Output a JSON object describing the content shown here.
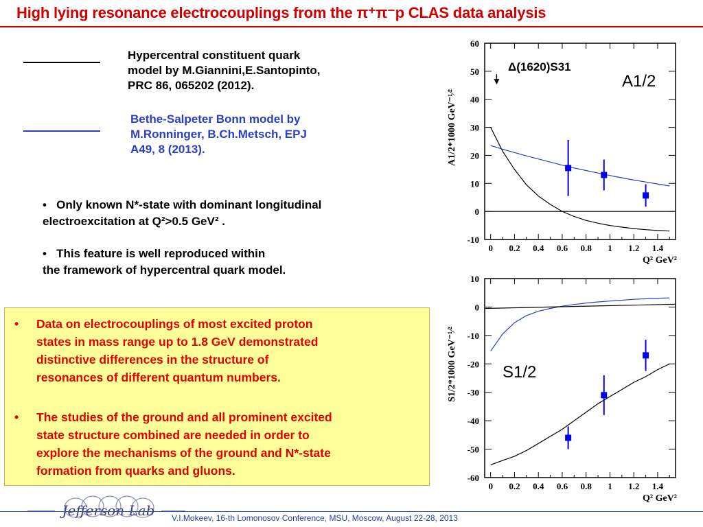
{
  "slide": {
    "title": "High lying resonance electrocouplings from the  π⁺π⁻p CLAS data analysis",
    "legend": [
      {
        "lines": [
          "Hypercentral constituent quark",
          "model by M.Giannini,E.Santopinto,",
          "PRC 86, 065202 (2012)."
        ],
        "color": "#000000"
      },
      {
        "lines": [
          "Bethe-Salpeter Bonn model by",
          "M.Ronninger, B.Ch.Metsch, EPJ",
          "A49, 8 (2013)."
        ],
        "color": "#2a3fc6"
      }
    ],
    "bullets": [
      {
        "bullet": "•",
        "line1": "Only known  N*-state with dominant longitudinal",
        "line2": "electroexcitation at Q²>0.5 GeV² ."
      },
      {
        "bullet": "•",
        "line1": "This feature is well reproduced within",
        "line2": "the framework  of hypercentral quark model."
      }
    ],
    "box": [
      {
        "bullet": "•",
        "lines": [
          "Data on electrocouplings of most excited proton",
          "states in mass range up to 1.8 GeV  demonstrated",
          "distinctive  differences in the structure of",
          "resonances of different  quantum numbers."
        ]
      },
      {
        "bullet": "•",
        "lines": [
          "The studies of the ground and all prominent excited",
          "state structure combined are needed in order to",
          "explore the mechanisms of the ground and N*-state",
          "formation from quarks and gluons."
        ]
      }
    ],
    "footer": "V.I.Mokeev, 16-th Lomonosov Conference, MSU, Moscow, August 22-28, 2013",
    "logo_text": "Jefferson Lab",
    "colors": {
      "title": "#d00000",
      "box_text": "#e00000",
      "box_bg": "#ffff99",
      "data": "#0000ee",
      "bonn": "#2a3fc6",
      "hcqm": "#000000"
    }
  },
  "chart_data": [
    {
      "type": "scatter",
      "resonance": "Δ(1620)S31",
      "label": "A1/2",
      "ylabel": "A1/2*1000 GeV⁻¹⁄²",
      "xlabel": "Q² GeV²",
      "xlim": [
        -0.05,
        1.55
      ],
      "ylim": [
        -10,
        60
      ],
      "xticks": [
        "0",
        "0.2",
        "0.4",
        "0.6",
        "0.8",
        "1",
        "1.2",
        "1.4"
      ],
      "yticks": [
        "-10",
        "0",
        "10",
        "20",
        "30",
        "40",
        "50",
        "60"
      ],
      "data": {
        "x": [
          0.65,
          0.95,
          1.3
        ],
        "y": [
          15.5,
          13.0,
          5.7
        ],
        "err": [
          10.0,
          5.5,
          4.0
        ]
      },
      "photon_point": {
        "x": 0.05,
        "y": 47
      },
      "series": [
        {
          "name": "Hypercentral constituent quark model",
          "color": "#000000",
          "x": [
            0.0,
            0.1,
            0.2,
            0.3,
            0.4,
            0.5,
            0.6,
            0.7,
            0.8,
            0.9,
            1.0,
            1.1,
            1.2,
            1.3,
            1.4,
            1.5
          ],
          "y": [
            30,
            21.5,
            15.0,
            9.5,
            5.5,
            2.5,
            0.0,
            -1.8,
            -3.2,
            -4.2,
            -5.0,
            -5.6,
            -6.1,
            -6.5,
            -6.8,
            -7.0
          ]
        },
        {
          "name": "Bethe-Salpeter Bonn model",
          "color": "#2a3fc6",
          "x": [
            0.0,
            0.1,
            0.2,
            0.3,
            0.4,
            0.5,
            0.6,
            0.7,
            0.8,
            0.9,
            1.0,
            1.1,
            1.2,
            1.3,
            1.4,
            1.5
          ],
          "y": [
            23.5,
            22.2,
            21.0,
            19.8,
            18.7,
            17.6,
            16.5,
            15.5,
            14.6,
            13.7,
            12.8,
            12.0,
            11.2,
            10.5,
            9.8,
            9.1
          ]
        },
        {
          "name": "zero",
          "color": "#000000",
          "x": [
            -0.05,
            1.55
          ],
          "y": [
            0,
            0
          ]
        }
      ]
    },
    {
      "type": "scatter",
      "label": "S1/2",
      "ylabel": "S1/2*1000 GeV⁻¹⁄²",
      "xlabel": "Q² GeV²",
      "xlim": [
        -0.05,
        1.55
      ],
      "ylim": [
        -60,
        10
      ],
      "xticks": [
        "0",
        "0.2",
        "0.4",
        "0.6",
        "0.8",
        "1",
        "1.2",
        "1.4"
      ],
      "yticks": [
        "-60",
        "-50",
        "-40",
        "-30",
        "-20",
        "-10",
        "0",
        "10"
      ],
      "data": {
        "x": [
          0.65,
          0.95,
          1.3
        ],
        "y": [
          -46,
          -31,
          -17
        ],
        "err": [
          4.0,
          7.0,
          5.5
        ]
      },
      "series": [
        {
          "name": "Hypercentral constituent quark model",
          "color": "#000000",
          "x": [
            0.0,
            0.1,
            0.2,
            0.3,
            0.4,
            0.5,
            0.6,
            0.7,
            0.8,
            0.9,
            1.0,
            1.1,
            1.2,
            1.3,
            1.4,
            1.5
          ],
          "y": [
            -55.5,
            -54.0,
            -52.5,
            -50.5,
            -48.0,
            -45.5,
            -43.0,
            -40.0,
            -37.0,
            -34.0,
            -31.5,
            -29.0,
            -26.5,
            -24.5,
            -22.0,
            -20.0
          ]
        },
        {
          "name": "Bethe-Salpeter Bonn model",
          "color": "#2a3fc6",
          "x": [
            0.0,
            0.1,
            0.2,
            0.3,
            0.4,
            0.5,
            0.6,
            0.7,
            0.8,
            0.9,
            1.0,
            1.1,
            1.2,
            1.3,
            1.4,
            1.5
          ],
          "y": [
            -15.5,
            -9.5,
            -5.5,
            -3.0,
            -1.5,
            -0.5,
            0.3,
            0.9,
            1.4,
            1.8,
            2.1,
            2.4,
            2.7,
            2.9,
            3.1,
            3.2
          ]
        },
        {
          "name": "zero",
          "color": "#000000",
          "x": [
            -0.05,
            1.55
          ],
          "y": [
            -0.5,
            1.0
          ]
        }
      ]
    }
  ]
}
